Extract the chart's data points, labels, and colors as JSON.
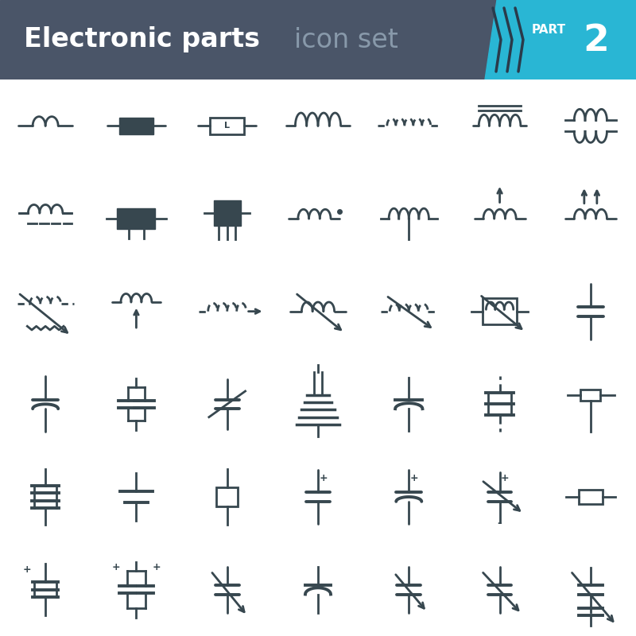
{
  "title_main": "Electronic parts",
  "title_gray": " icon set",
  "bg_header": "#4a5568",
  "bg_cyan": "#29b6d4",
  "bg_white": "#ffffff",
  "icon_color": "#37474f",
  "grid_rows": 6,
  "grid_cols": 7
}
